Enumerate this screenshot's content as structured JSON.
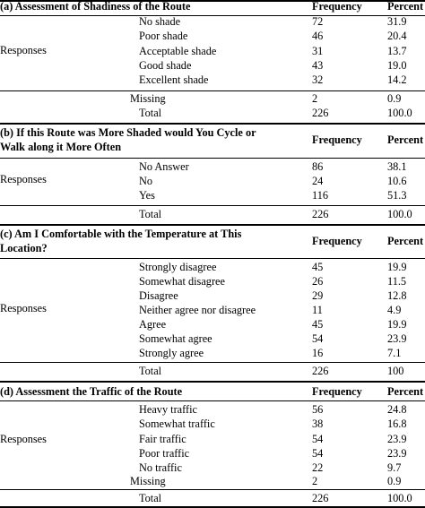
{
  "columns": {
    "frequency": "Frequency",
    "percent": "Percent"
  },
  "sections": [
    {
      "title_lines": [
        "(a) Assessment of Shadiness of the Route"
      ],
      "group_label": "Responses",
      "rows": [
        {
          "label": "No shade",
          "freq": "72",
          "pct": "31.9"
        },
        {
          "label": "Poor shade",
          "freq": "46",
          "pct": "20.4"
        },
        {
          "label": "Acceptable shade",
          "freq": "31",
          "pct": "13.7"
        },
        {
          "label": "Good shade",
          "freq": "43",
          "pct": "19.0"
        },
        {
          "label": "Excellent shade",
          "freq": "32",
          "pct": "14.2"
        }
      ],
      "missing": {
        "label": "Missing",
        "freq": "2",
        "pct": "0.9"
      },
      "total": {
        "label": "Total",
        "freq": "226",
        "pct": "100.0"
      }
    },
    {
      "title_lines": [
        "(b) If this Route was More Shaded would You Cycle or",
        "Walk along it More Often"
      ],
      "group_label": "Responses",
      "rows": [
        {
          "label": "No Answer",
          "freq": "86",
          "pct": "38.1"
        },
        {
          "label": "No",
          "freq": "24",
          "pct": "10.6"
        },
        {
          "label": "Yes",
          "freq": "116",
          "pct": "51.3"
        }
      ],
      "total": {
        "label": "Total",
        "freq": "226",
        "pct": "100.0"
      }
    },
    {
      "title_lines": [
        "(c) Am I Comfortable with the Temperature at This",
        "Location?"
      ],
      "group_label": "Responses",
      "rows": [
        {
          "label": "Strongly disagree",
          "freq": "45",
          "pct": "19.9"
        },
        {
          "label": "Somewhat disagree",
          "freq": "26",
          "pct": "11.5"
        },
        {
          "label": "Disagree",
          "freq": "29",
          "pct": "12.8"
        },
        {
          "label": "Neither agree nor disagree",
          "freq": "11",
          "pct": "4.9"
        },
        {
          "label": "Agree",
          "freq": "45",
          "pct": "19.9"
        },
        {
          "label": "Somewhat agree",
          "freq": "54",
          "pct": "23.9"
        },
        {
          "label": "Strongly agree",
          "freq": "16",
          "pct": "7.1"
        }
      ],
      "total": {
        "label": "Total",
        "freq": "226",
        "pct": "100"
      }
    },
    {
      "title_lines": [
        "(d) Assessment the Traffic of the Route"
      ],
      "group_label": "Responses",
      "rows": [
        {
          "label": "Heavy traffic",
          "freq": "56",
          "pct": "24.8"
        },
        {
          "label": "Somewhat traffic",
          "freq": "38",
          "pct": "16.8"
        },
        {
          "label": "Fair traffic",
          "freq": "54",
          "pct": "23.9"
        },
        {
          "label": "Poor traffic",
          "freq": "54",
          "pct": "23.9"
        },
        {
          "label": "No traffic",
          "freq": "22",
          "pct": "9.7"
        }
      ],
      "missing": {
        "label": "Missing",
        "freq": "2",
        "pct": "0.9"
      },
      "total": {
        "label": "Total",
        "freq": "226",
        "pct": "100.0"
      }
    }
  ]
}
